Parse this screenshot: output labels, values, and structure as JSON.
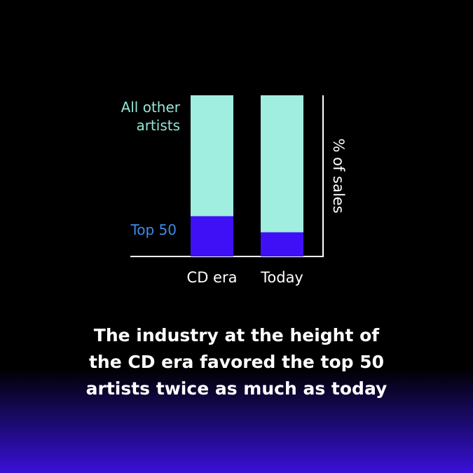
{
  "chart_data": {
    "type": "stacked_bar",
    "caption": "The industry at the height of the CD era favored the top 50 artists twice as much as today",
    "y_label": "% of sales",
    "categories": [
      "CD era",
      "Today"
    ],
    "series": [
      {
        "name": "Top 50",
        "color": "#3f10f5",
        "values": [
          25,
          15
        ]
      },
      {
        "name": "All other artists",
        "color": "#a0eee0",
        "values": [
          75,
          85
        ]
      }
    ],
    "ylim": [
      0,
      100
    ]
  }
}
